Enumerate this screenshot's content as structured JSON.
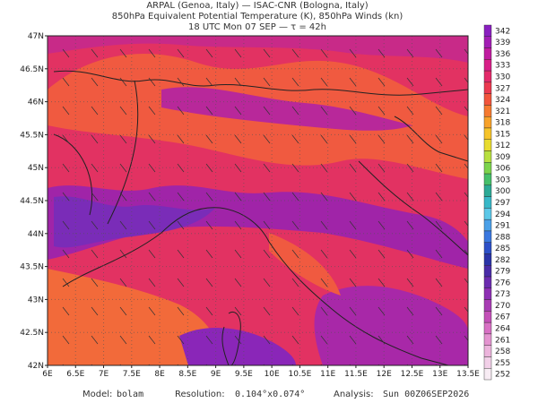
{
  "header": {
    "lines": [
      "ARPAL (Genoa, Italy)  —  ISAC-CNR (Bologna, Italy)",
      "850hPa Equivalent Potential Temperature (K), 850hPa Winds (kn)",
      "18 UTC Mon 07 SEP  —  τ = 42h"
    ]
  },
  "map": {
    "lat_labels": [
      "47N",
      "46.5N",
      "46N",
      "45.5N",
      "45N",
      "44.5N",
      "44N",
      "43.5N",
      "43N",
      "42.5N",
      "42N"
    ],
    "lon_labels": [
      "6E",
      "6.5E",
      "7E",
      "7.5E",
      "8E",
      "8.5E",
      "9E",
      "9.5E",
      "10E",
      "10.5E",
      "11E",
      "11.5E",
      "12E",
      "12.5E",
      "13E",
      "13.5E"
    ]
  },
  "colorbar": {
    "labels": [
      342,
      339,
      336,
      333,
      330,
      327,
      324,
      321,
      318,
      315,
      312,
      309,
      306,
      303,
      300,
      297,
      294,
      291,
      288,
      285,
      282,
      279,
      276,
      273,
      270,
      267,
      264,
      261,
      258,
      255,
      252
    ],
    "colors": [
      "#8a1fc0",
      "#a21db4",
      "#c01ca0",
      "#d81f88",
      "#e42a6a",
      "#ec3a50",
      "#f2553c",
      "#f67a30",
      "#f8a22a",
      "#f6c42a",
      "#e8dc30",
      "#b8e040",
      "#7cd44c",
      "#46c06a",
      "#2caa96",
      "#38b8c8",
      "#5cc8e8",
      "#4aa0e8",
      "#3a78e0",
      "#2c50c8",
      "#2a34a8",
      "#4a2ca8",
      "#6c2cb0",
      "#8e30b4",
      "#a83cb4",
      "#c450b8",
      "#d870c4",
      "#e494d0",
      "#ecb4dc",
      "#f2d0e8",
      "#f8ecf4"
    ]
  },
  "footer": {
    "model_label": "Model:",
    "model": "bolam",
    "resolution_label": "Resolution:",
    "resolution": "0.104°x0.074°",
    "analysis_label": "Analysis:",
    "analysis": "Sun 00Z06SEP2026"
  }
}
